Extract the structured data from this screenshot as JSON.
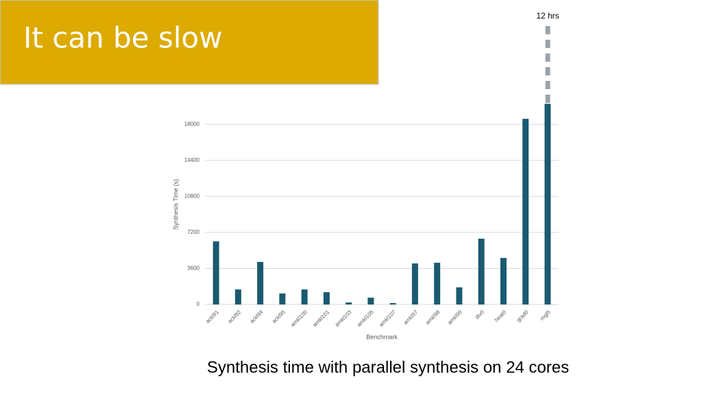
{
  "slide_title": "It can be slow",
  "caption": "Synthesis time with parallel synthesis on 24 cores",
  "chart_data": {
    "type": "bar",
    "x_label": "Benchmark",
    "y_label": "Synthesis Time (s)",
    "annotation": "12 hrs",
    "categories": [
      "ackl91",
      "ackl92",
      "ackl94",
      "ackl95",
      "amkl100",
      "amkl101",
      "amkl103",
      "amkl105",
      "amkl107",
      "amkl97",
      "amkl98",
      "amkl99",
      "div0",
      "heat0",
      "grad0",
      "mgl5"
    ],
    "values": [
      6300,
      1500,
      4250,
      1100,
      1500,
      1230,
      200,
      680,
      140,
      4100,
      4170,
      1710,
      6570,
      4650,
      18550,
      20050
    ],
    "color": "#1b5a70",
    "ylim": [
      0,
      19800
    ],
    "yticks": [
      0,
      3600,
      7200,
      10800,
      14400,
      18000
    ],
    "grid": true
  }
}
